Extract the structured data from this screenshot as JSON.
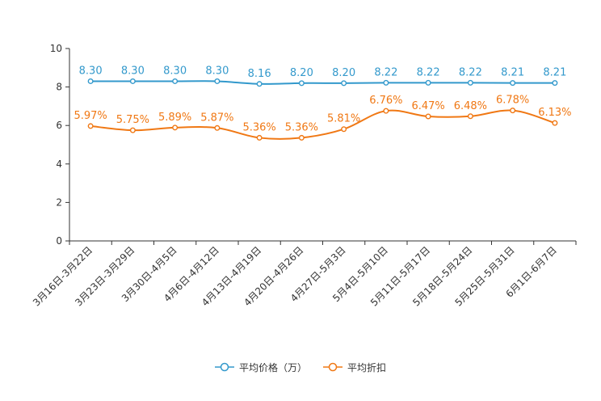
{
  "chart_data": {
    "type": "line",
    "title": "",
    "xlabel": "",
    "ylabel": "",
    "ylim": [
      0,
      10
    ],
    "yticks": [
      0,
      2,
      4,
      6,
      8,
      10
    ],
    "grid": false,
    "legend_position": "bottom",
    "categories": [
      "3月16日-3月22日",
      "3月23日-3月29日",
      "3月30日-4月5日",
      "4月6日-4月12日",
      "4月13日-4月19日",
      "4月20日-4月26日",
      "4月27日-5月3日",
      "5月4日-5月10日",
      "5月11日-5月17日",
      "5月18日-5月24日",
      "5月25日-5月31日",
      "6月1日-6月7日"
    ],
    "series": [
      {
        "name": "平均价格（万）",
        "color": "#3399cc",
        "values": [
          8.3,
          8.3,
          8.3,
          8.3,
          8.16,
          8.2,
          8.2,
          8.22,
          8.22,
          8.22,
          8.21,
          8.21
        ],
        "labels": [
          "8.30",
          "8.30",
          "8.30",
          "8.30",
          "8.16",
          "8.20",
          "8.20",
          "8.22",
          "8.22",
          "8.22",
          "8.21",
          "8.21"
        ]
      },
      {
        "name": "平均折扣",
        "color": "#f07814",
        "values": [
          5.97,
          5.75,
          5.89,
          5.87,
          5.36,
          5.36,
          5.81,
          6.76,
          6.47,
          6.48,
          6.78,
          6.13
        ],
        "labels": [
          "5.97%",
          "5.75%",
          "5.89%",
          "5.87%",
          "5.36%",
          "5.36%",
          "5.81%",
          "6.76%",
          "6.47%",
          "6.48%",
          "6.78%",
          "6.13%"
        ]
      }
    ]
  }
}
